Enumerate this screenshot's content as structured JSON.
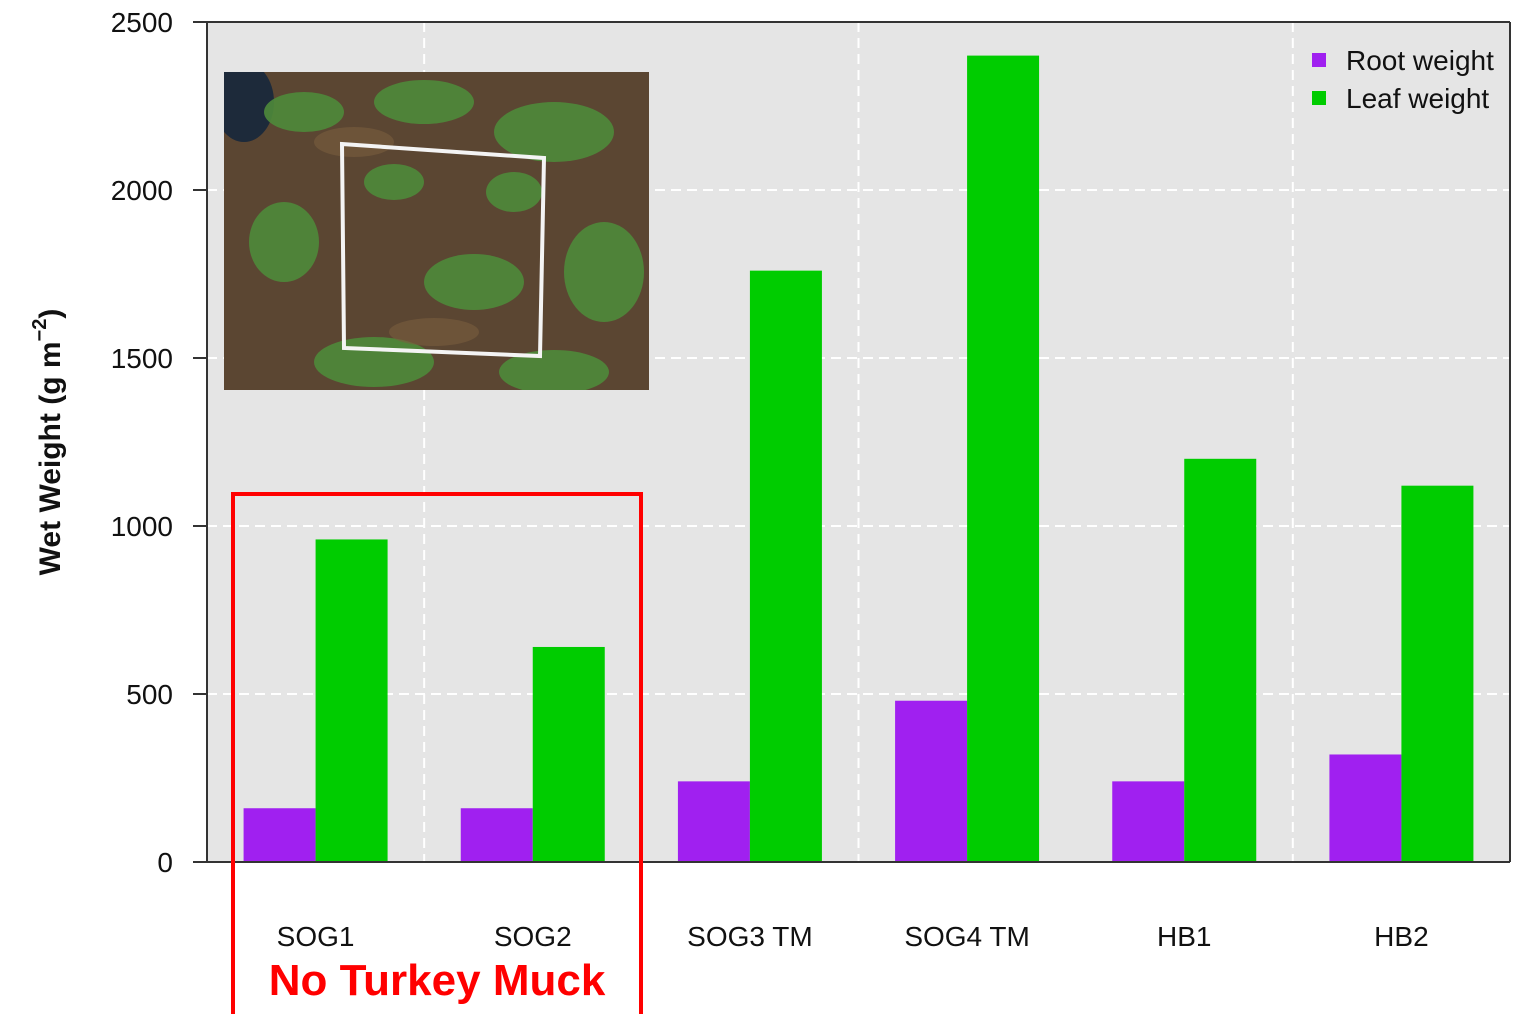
{
  "chart_data": {
    "type": "bar",
    "title": "",
    "xlabel": "",
    "ylabel": "Wet Weight (g m",
    "ylabel_superscript": "−2",
    "ylabel_close": ")",
    "ylim": [
      0,
      2500
    ],
    "yticks": [
      "0",
      "500",
      "1000",
      "1500",
      "2000",
      "2500"
    ],
    "ytick_values": [
      0,
      500,
      1000,
      1500,
      2000,
      2500
    ],
    "grid": true,
    "legend_position": "top-right",
    "categories": [
      "SOG1",
      "SOG2",
      "SOG3 TM",
      "SOG4 TM",
      "HB1",
      "HB2"
    ],
    "series": [
      {
        "name": "Root weight",
        "color": "#a020f0",
        "values": [
          160,
          160,
          240,
          480,
          240,
          320
        ]
      },
      {
        "name": "Leaf weight",
        "color": "#00cc00",
        "values": [
          960,
          640,
          1760,
          2400,
          1200,
          1120
        ]
      }
    ],
    "annotation": {
      "text": "No Turkey Muck",
      "color": "#ff0000",
      "groups": [
        "SOG1",
        "SOG2"
      ]
    }
  }
}
